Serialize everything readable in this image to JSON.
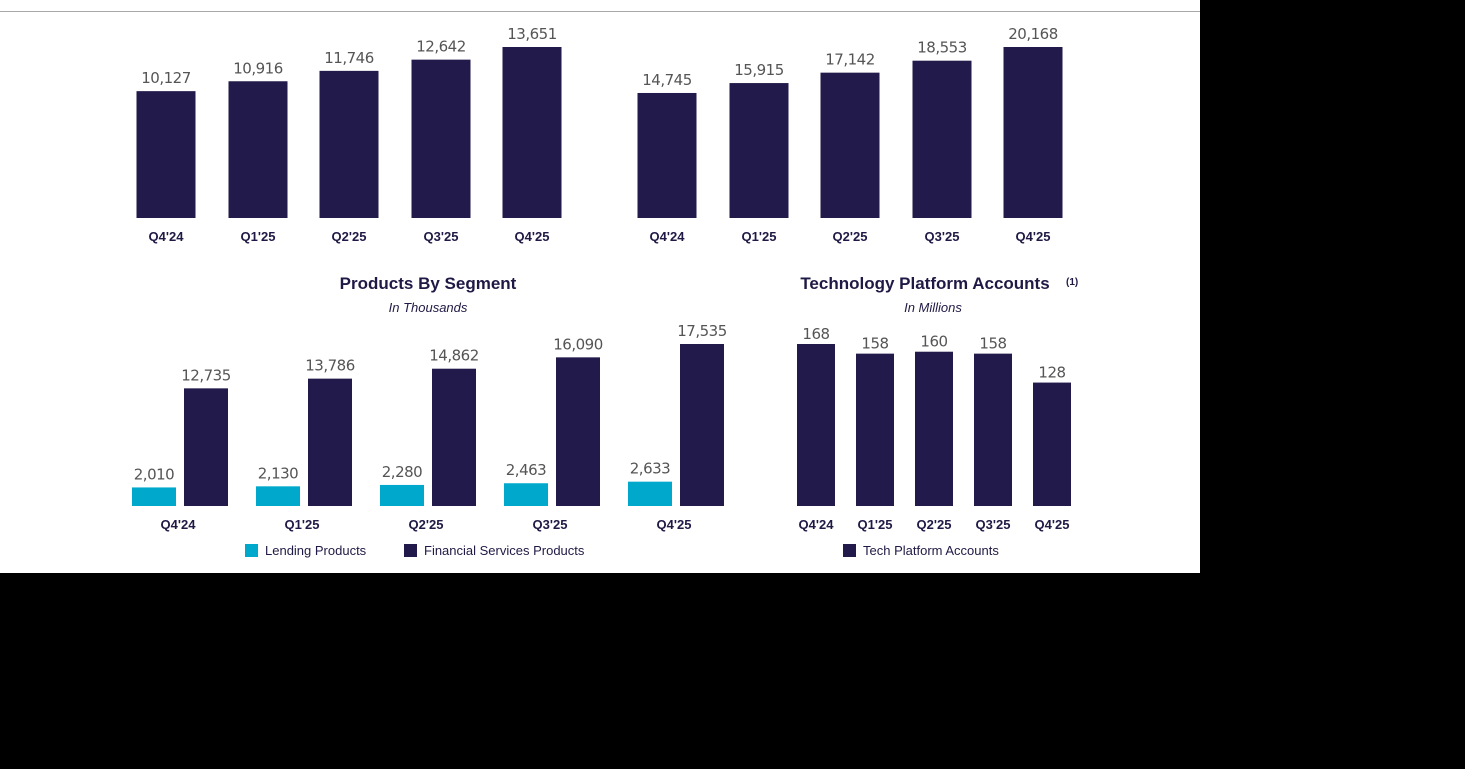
{
  "colors": {
    "navy": "#221a4a",
    "teal": "#00a9cc"
  },
  "chart_data": [
    {
      "type": "bar",
      "title": "",
      "categories": [
        "Q4'24",
        "Q1'25",
        "Q2'25",
        "Q3'25",
        "Q4'25"
      ],
      "values": [
        10127,
        10916,
        11746,
        12642,
        13651
      ],
      "labels": [
        "10,127",
        "10,916",
        "11,746",
        "12,642",
        "13,651"
      ]
    },
    {
      "type": "bar",
      "title": "",
      "categories": [
        "Q4'24",
        "Q1'25",
        "Q2'25",
        "Q3'25",
        "Q4'25"
      ],
      "values": [
        14745,
        15915,
        17142,
        18553,
        20168
      ],
      "labels": [
        "14,745",
        "15,915",
        "17,142",
        "18,553",
        "20,168"
      ]
    },
    {
      "type": "bar",
      "title": "Products By Segment",
      "subtitle": "In Thousands",
      "categories": [
        "Q4'24",
        "Q1'25",
        "Q2'25",
        "Q3'25",
        "Q4'25"
      ],
      "series": [
        {
          "name": "Lending Products",
          "values": [
            2010,
            2130,
            2280,
            2463,
            2633
          ],
          "labels": [
            "2,010",
            "2,130",
            "2,280",
            "2,463",
            "2,633"
          ]
        },
        {
          "name": "Financial Services Products",
          "values": [
            12735,
            13786,
            14862,
            16090,
            17535
          ],
          "labels": [
            "12,735",
            "13,786",
            "14,862",
            "16,090",
            "17,535"
          ]
        }
      ],
      "legend": "bottom"
    },
    {
      "type": "bar",
      "title": "Technology Platform Accounts",
      "footnote": "(1)",
      "subtitle": "In Millions",
      "categories": [
        "Q4'24",
        "Q1'25",
        "Q2'25",
        "Q3'25",
        "Q4'25"
      ],
      "series": [
        {
          "name": "Tech Platform Accounts",
          "values": [
            168,
            158,
            160,
            158,
            128
          ],
          "labels": [
            "168",
            "158",
            "160",
            "158",
            "128"
          ]
        }
      ],
      "legend": "bottom"
    }
  ]
}
